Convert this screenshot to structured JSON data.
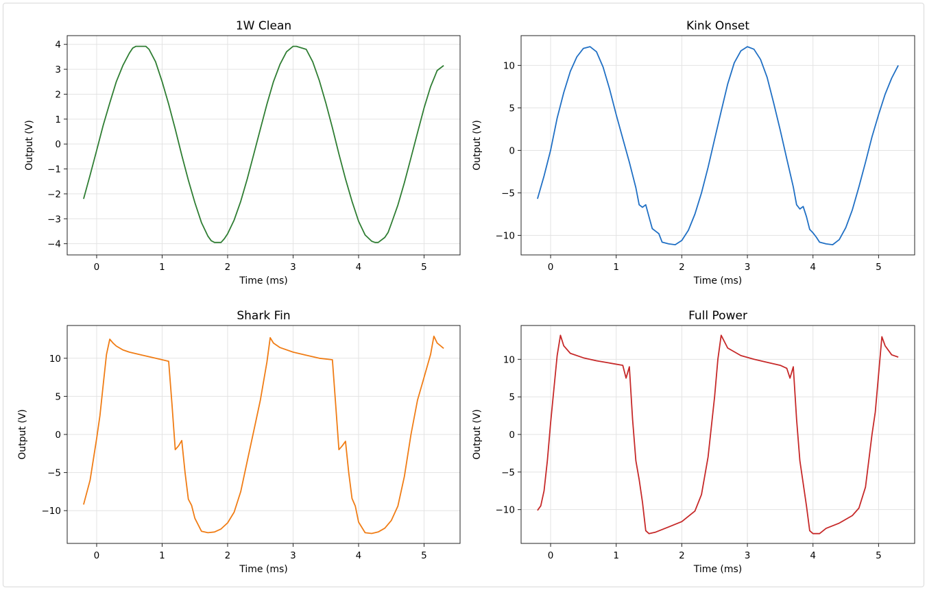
{
  "chart_data": [
    {
      "type": "line",
      "title": "1W Clean",
      "xlabel": "Time (ms)",
      "ylabel": "Output (V)",
      "xlim": [
        -0.45,
        5.55
      ],
      "ylim": [
        -4.45,
        4.35
      ],
      "xticks": [
        0,
        1,
        2,
        3,
        4,
        5
      ],
      "yticks": [
        -4,
        -3,
        -2,
        -1,
        0,
        1,
        2,
        3,
        4
      ],
      "grid": true,
      "series": [
        {
          "color": "#2e7d32",
          "x": [
            -0.2,
            -0.1,
            0.0,
            0.1,
            0.2,
            0.3,
            0.4,
            0.5,
            0.55,
            0.6,
            0.75,
            0.8,
            0.9,
            1.0,
            1.1,
            1.2,
            1.3,
            1.4,
            1.5,
            1.6,
            1.7,
            1.75,
            1.8,
            1.9,
            1.95,
            2.0,
            2.1,
            2.2,
            2.3,
            2.4,
            2.5,
            2.6,
            2.7,
            2.8,
            2.9,
            3.0,
            3.05,
            3.2,
            3.3,
            3.4,
            3.5,
            3.6,
            3.7,
            3.8,
            3.9,
            4.0,
            4.1,
            4.2,
            4.25,
            4.3,
            4.4,
            4.45,
            4.5,
            4.6,
            4.7,
            4.8,
            4.9,
            5.0,
            5.1,
            5.2,
            5.3
          ],
          "y": [
            -2.2,
            -1.25,
            -0.25,
            0.75,
            1.65,
            2.5,
            3.15,
            3.65,
            3.85,
            3.92,
            3.92,
            3.8,
            3.3,
            2.5,
            1.6,
            0.6,
            -0.45,
            -1.45,
            -2.35,
            -3.15,
            -3.7,
            -3.88,
            -3.95,
            -3.95,
            -3.8,
            -3.6,
            -3.05,
            -2.3,
            -1.4,
            -0.4,
            0.6,
            1.6,
            2.5,
            3.2,
            3.7,
            3.92,
            3.92,
            3.8,
            3.3,
            2.55,
            1.65,
            0.65,
            -0.4,
            -1.4,
            -2.3,
            -3.1,
            -3.65,
            -3.9,
            -3.95,
            -3.95,
            -3.75,
            -3.55,
            -3.2,
            -2.45,
            -1.55,
            -0.55,
            0.45,
            1.45,
            2.3,
            2.95,
            3.15
          ]
        }
      ]
    },
    {
      "type": "line",
      "title": "Kink Onset",
      "xlabel": "Time (ms)",
      "ylabel": "Output (V)",
      "xlim": [
        -0.45,
        5.55
      ],
      "ylim": [
        -12.3,
        13.5
      ],
      "xticks": [
        0,
        1,
        2,
        3,
        4,
        5
      ],
      "yticks": [
        -10,
        -5,
        0,
        5,
        10
      ],
      "grid": true,
      "series": [
        {
          "color": "#1f6fc4",
          "x": [
            -0.2,
            -0.1,
            0.0,
            0.1,
            0.2,
            0.3,
            0.4,
            0.5,
            0.6,
            0.7,
            0.8,
            0.9,
            1.0,
            1.1,
            1.2,
            1.3,
            1.35,
            1.4,
            1.45,
            1.5,
            1.55,
            1.6,
            1.65,
            1.7,
            1.8,
            1.9,
            2.0,
            2.1,
            2.2,
            2.3,
            2.4,
            2.5,
            2.6,
            2.7,
            2.8,
            2.9,
            3.0,
            3.1,
            3.2,
            3.3,
            3.4,
            3.5,
            3.6,
            3.7,
            3.75,
            3.8,
            3.85,
            3.9,
            3.95,
            4.0,
            4.05,
            4.1,
            4.2,
            4.3,
            4.4,
            4.5,
            4.6,
            4.7,
            4.8,
            4.9,
            5.0,
            5.1,
            5.2,
            5.3
          ],
          "y": [
            -5.7,
            -3.0,
            0.0,
            3.8,
            6.8,
            9.3,
            11.0,
            12.0,
            12.2,
            11.6,
            9.8,
            7.2,
            4.2,
            1.4,
            -1.4,
            -4.4,
            -6.4,
            -6.7,
            -6.4,
            -7.8,
            -9.2,
            -9.5,
            -9.8,
            -10.8,
            -11.0,
            -11.1,
            -10.6,
            -9.4,
            -7.5,
            -5.0,
            -2.0,
            1.3,
            4.6,
            7.8,
            10.3,
            11.7,
            12.2,
            11.9,
            10.7,
            8.6,
            5.6,
            2.4,
            -1.0,
            -4.3,
            -6.4,
            -6.9,
            -6.6,
            -7.8,
            -9.3,
            -9.7,
            -10.2,
            -10.8,
            -11.0,
            -11.1,
            -10.5,
            -9.1,
            -7.0,
            -4.3,
            -1.4,
            1.6,
            4.2,
            6.6,
            8.5,
            10.0
          ]
        }
      ]
    },
    {
      "type": "line",
      "title": "Shark Fin",
      "xlabel": "Time (ms)",
      "ylabel": "Output (V)",
      "xlim": [
        -0.45,
        5.55
      ],
      "ylim": [
        -14.3,
        14.3
      ],
      "xticks": [
        0,
        1,
        2,
        3,
        4,
        5
      ],
      "yticks": [
        -10,
        -5,
        0,
        5,
        10
      ],
      "grid": true,
      "series": [
        {
          "color": "#f07c14",
          "x": [
            -0.2,
            -0.1,
            0.0,
            0.05,
            0.1,
            0.15,
            0.2,
            0.25,
            0.3,
            0.4,
            0.5,
            0.7,
            0.9,
            1.0,
            1.1,
            1.15,
            1.2,
            1.25,
            1.3,
            1.35,
            1.4,
            1.45,
            1.5,
            1.6,
            1.7,
            1.8,
            1.9,
            2.0,
            2.1,
            2.2,
            2.3,
            2.4,
            2.5,
            2.6,
            2.65,
            2.7,
            2.8,
            3.0,
            3.2,
            3.4,
            3.6,
            3.65,
            3.7,
            3.75,
            3.8,
            3.85,
            3.9,
            3.95,
            4.0,
            4.1,
            4.2,
            4.3,
            4.4,
            4.5,
            4.6,
            4.7,
            4.8,
            4.9,
            5.0,
            5.1,
            5.15,
            5.2,
            5.3
          ],
          "y": [
            -9.2,
            -6.0,
            -0.5,
            2.5,
            6.5,
            10.5,
            12.5,
            12.0,
            11.6,
            11.1,
            10.8,
            10.4,
            10.0,
            9.8,
            9.6,
            4.0,
            -2.0,
            -1.5,
            -0.8,
            -5.0,
            -8.5,
            -9.3,
            -11.0,
            -12.7,
            -12.9,
            -12.8,
            -12.4,
            -11.6,
            -10.2,
            -7.5,
            -3.5,
            0.5,
            4.5,
            9.5,
            12.7,
            12.0,
            11.4,
            10.8,
            10.4,
            10.0,
            9.8,
            4.0,
            -2.0,
            -1.5,
            -0.9,
            -5.0,
            -8.4,
            -9.4,
            -11.5,
            -12.9,
            -13.0,
            -12.8,
            -12.3,
            -11.3,
            -9.4,
            -5.5,
            0.0,
            4.5,
            7.5,
            10.5,
            12.9,
            12.0,
            11.3
          ]
        }
      ]
    },
    {
      "type": "line",
      "title": "Full Power",
      "xlabel": "Time (ms)",
      "ylabel": "Output (V)",
      "xlim": [
        -0.45,
        5.55
      ],
      "ylim": [
        -14.5,
        14.5
      ],
      "xticks": [
        0,
        1,
        2,
        3,
        4,
        5
      ],
      "yticks": [
        -10,
        -5,
        0,
        5,
        10
      ],
      "grid": true,
      "series": [
        {
          "color": "#c62828",
          "x": [
            -0.2,
            -0.15,
            -0.1,
            -0.05,
            0.0,
            0.05,
            0.1,
            0.15,
            0.2,
            0.3,
            0.5,
            0.7,
            0.9,
            1.1,
            1.15,
            1.2,
            1.25,
            1.3,
            1.35,
            1.4,
            1.45,
            1.5,
            1.6,
            1.8,
            2.0,
            2.2,
            2.3,
            2.4,
            2.5,
            2.55,
            2.6,
            2.7,
            2.9,
            3.1,
            3.3,
            3.5,
            3.6,
            3.65,
            3.7,
            3.75,
            3.8,
            3.85,
            3.9,
            3.95,
            4.0,
            4.1,
            4.2,
            4.4,
            4.6,
            4.7,
            4.8,
            4.9,
            4.95,
            5.0,
            5.05,
            5.1,
            5.2,
            5.3
          ],
          "y": [
            -10.1,
            -9.5,
            -7.5,
            -3.5,
            1.5,
            6.0,
            10.5,
            13.2,
            11.8,
            10.8,
            10.2,
            9.8,
            9.5,
            9.2,
            7.5,
            9.0,
            2.0,
            -3.5,
            -6.0,
            -9.0,
            -12.8,
            -13.2,
            -13.0,
            -12.3,
            -11.6,
            -10.2,
            -8.0,
            -3.0,
            5.0,
            10.0,
            13.2,
            11.5,
            10.5,
            10.0,
            9.6,
            9.2,
            8.8,
            7.5,
            9.0,
            2.0,
            -3.5,
            -6.5,
            -9.5,
            -12.8,
            -13.2,
            -13.2,
            -12.5,
            -11.8,
            -10.8,
            -9.8,
            -7.0,
            0.0,
            3.0,
            8.0,
            13.0,
            11.8,
            10.6,
            10.3
          ]
        }
      ]
    }
  ]
}
